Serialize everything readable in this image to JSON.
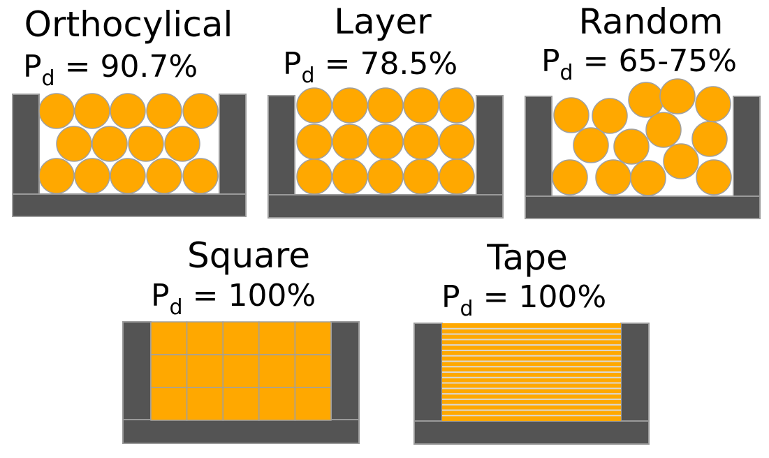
{
  "colors": {
    "wall": "#545454",
    "wall_stroke": "#9a9a9a",
    "fill": "#ffa800",
    "fill_stroke": "#a0a0a0",
    "tape_line": "#d9d9d9",
    "text": "#000000"
  },
  "panels": [
    {
      "id": "orthocyclical",
      "title": "Orthocylical",
      "p_symbol": "P",
      "p_sub": "d",
      "p_value": "= 90.7%"
    },
    {
      "id": "layer",
      "title": "Layer",
      "p_symbol": "P",
      "p_sub": "d",
      "p_value": "= 78.5%"
    },
    {
      "id": "random",
      "title": "Random",
      "p_symbol": "P",
      "p_sub": "d",
      "p_value": "= 65-75%"
    },
    {
      "id": "square",
      "title": "Square",
      "p_symbol": "P",
      "p_sub": "d",
      "p_value": "= 100%"
    },
    {
      "id": "tape",
      "title": "Tape",
      "p_symbol": "P",
      "p_sub": "d",
      "p_value": "= 100%"
    }
  ]
}
